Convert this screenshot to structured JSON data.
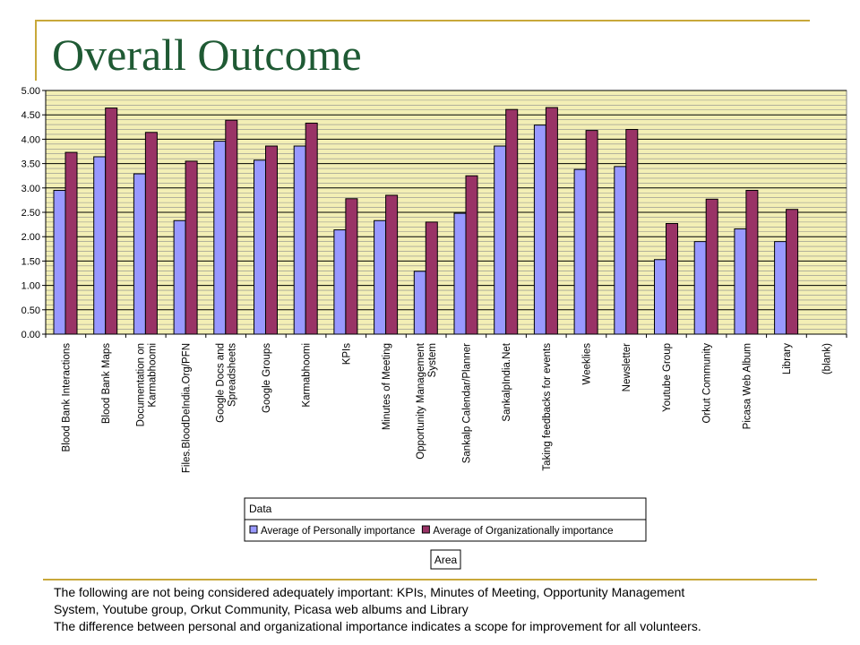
{
  "title": "Overall Outcome",
  "footer": {
    "line1": "The following are not being considered adequately important: KPIs, Minutes of Meeting, Opportunity Management",
    "line2": "System, Youtube group, Orkut Community, Picasa web albums and Library",
    "line3": "The difference between personal and organizational importance indicates a scope for improvement for all volunteers."
  },
  "chart_data": {
    "type": "bar",
    "ylim": [
      0,
      5
    ],
    "ytick_step": 0.5,
    "ytick_minor_step": 0.1,
    "grid": true,
    "plot_background": "#f3efb5",
    "data_field_label": "Data",
    "axis_field_label": "Area",
    "categories": [
      [
        "Blood Bank Interactions"
      ],
      [
        "Blood Bank Maps"
      ],
      [
        "Documentation on",
        "Karmabhoomi"
      ],
      [
        "Files.BloodDeIndia.Org/PFN"
      ],
      [
        "Google Docs and",
        "Spreadsheets"
      ],
      [
        "Google Groups"
      ],
      [
        "Karmabhoomi"
      ],
      [
        "KPIs"
      ],
      [
        "Minutes of Meeting"
      ],
      [
        "Opportunity Management",
        "System"
      ],
      [
        "Sankalp Calendar/Planner"
      ],
      [
        "SankalpIndia.Net"
      ],
      [
        "Taking feedbacks for events"
      ],
      [
        "Weeklies"
      ],
      [
        "Newsletter"
      ],
      [
        "Youtube Group"
      ],
      [
        "Orkut Community"
      ],
      [
        "Picasa Web Album"
      ],
      [
        "Library"
      ],
      [
        "(blank)"
      ]
    ],
    "series": [
      {
        "name": "Average of Personally importance",
        "color": "#9999ff",
        "values": [
          2.95,
          3.64,
          3.29,
          2.33,
          3.96,
          3.57,
          3.86,
          2.14,
          2.33,
          1.29,
          2.48,
          3.86,
          4.29,
          3.38,
          3.44,
          1.53,
          1.9,
          2.16,
          1.9,
          null
        ]
      },
      {
        "name": "Average of Organizationally importance",
        "color": "#993366",
        "values": [
          3.73,
          4.64,
          4.14,
          3.55,
          4.39,
          3.86,
          4.33,
          2.78,
          2.85,
          2.3,
          3.25,
          4.61,
          4.65,
          4.18,
          4.2,
          2.27,
          2.77,
          2.95,
          2.56,
          null
        ]
      }
    ]
  }
}
